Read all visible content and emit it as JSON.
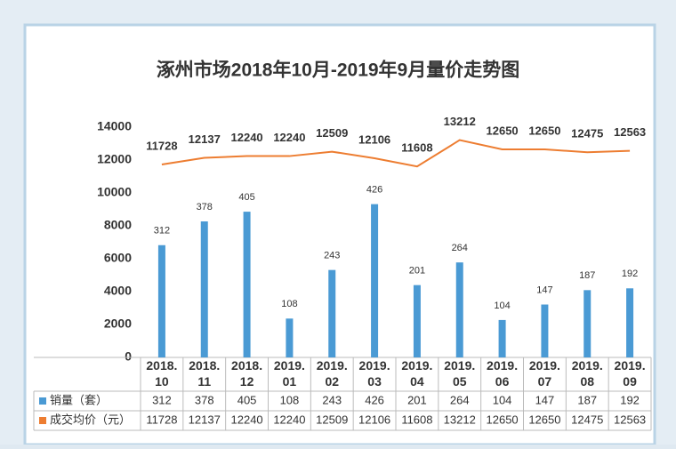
{
  "chart_data": {
    "type": "bar-line",
    "title": "涿州市场2018年10月-2019年9月量价走势图",
    "categories": [
      "2018.10",
      "2018.11",
      "2018.12",
      "2019.01",
      "2019.02",
      "2019.03",
      "2019.04",
      "2019.05",
      "2019.06",
      "2019.07",
      "2019.08",
      "2019.09"
    ],
    "series": [
      {
        "name": "销量（套）",
        "color": "#4a9ad4",
        "type": "bar",
        "axis": "y2",
        "values": [
          312,
          378,
          405,
          108,
          243,
          426,
          201,
          264,
          104,
          147,
          187,
          192
        ]
      },
      {
        "name": "成交均价（元）",
        "color": "#ed7d31",
        "type": "line",
        "values": [
          11728,
          12137,
          12240,
          12240,
          12509,
          12106,
          11608,
          13212,
          12650,
          12650,
          12475,
          12563
        ]
      }
    ],
    "ylim": [
      0,
      14000
    ],
    "yticks": [
      0,
      2000,
      4000,
      6000,
      8000,
      10000,
      12000,
      14000
    ],
    "y2lim": [
      0,
      640
    ],
    "grid": false
  }
}
